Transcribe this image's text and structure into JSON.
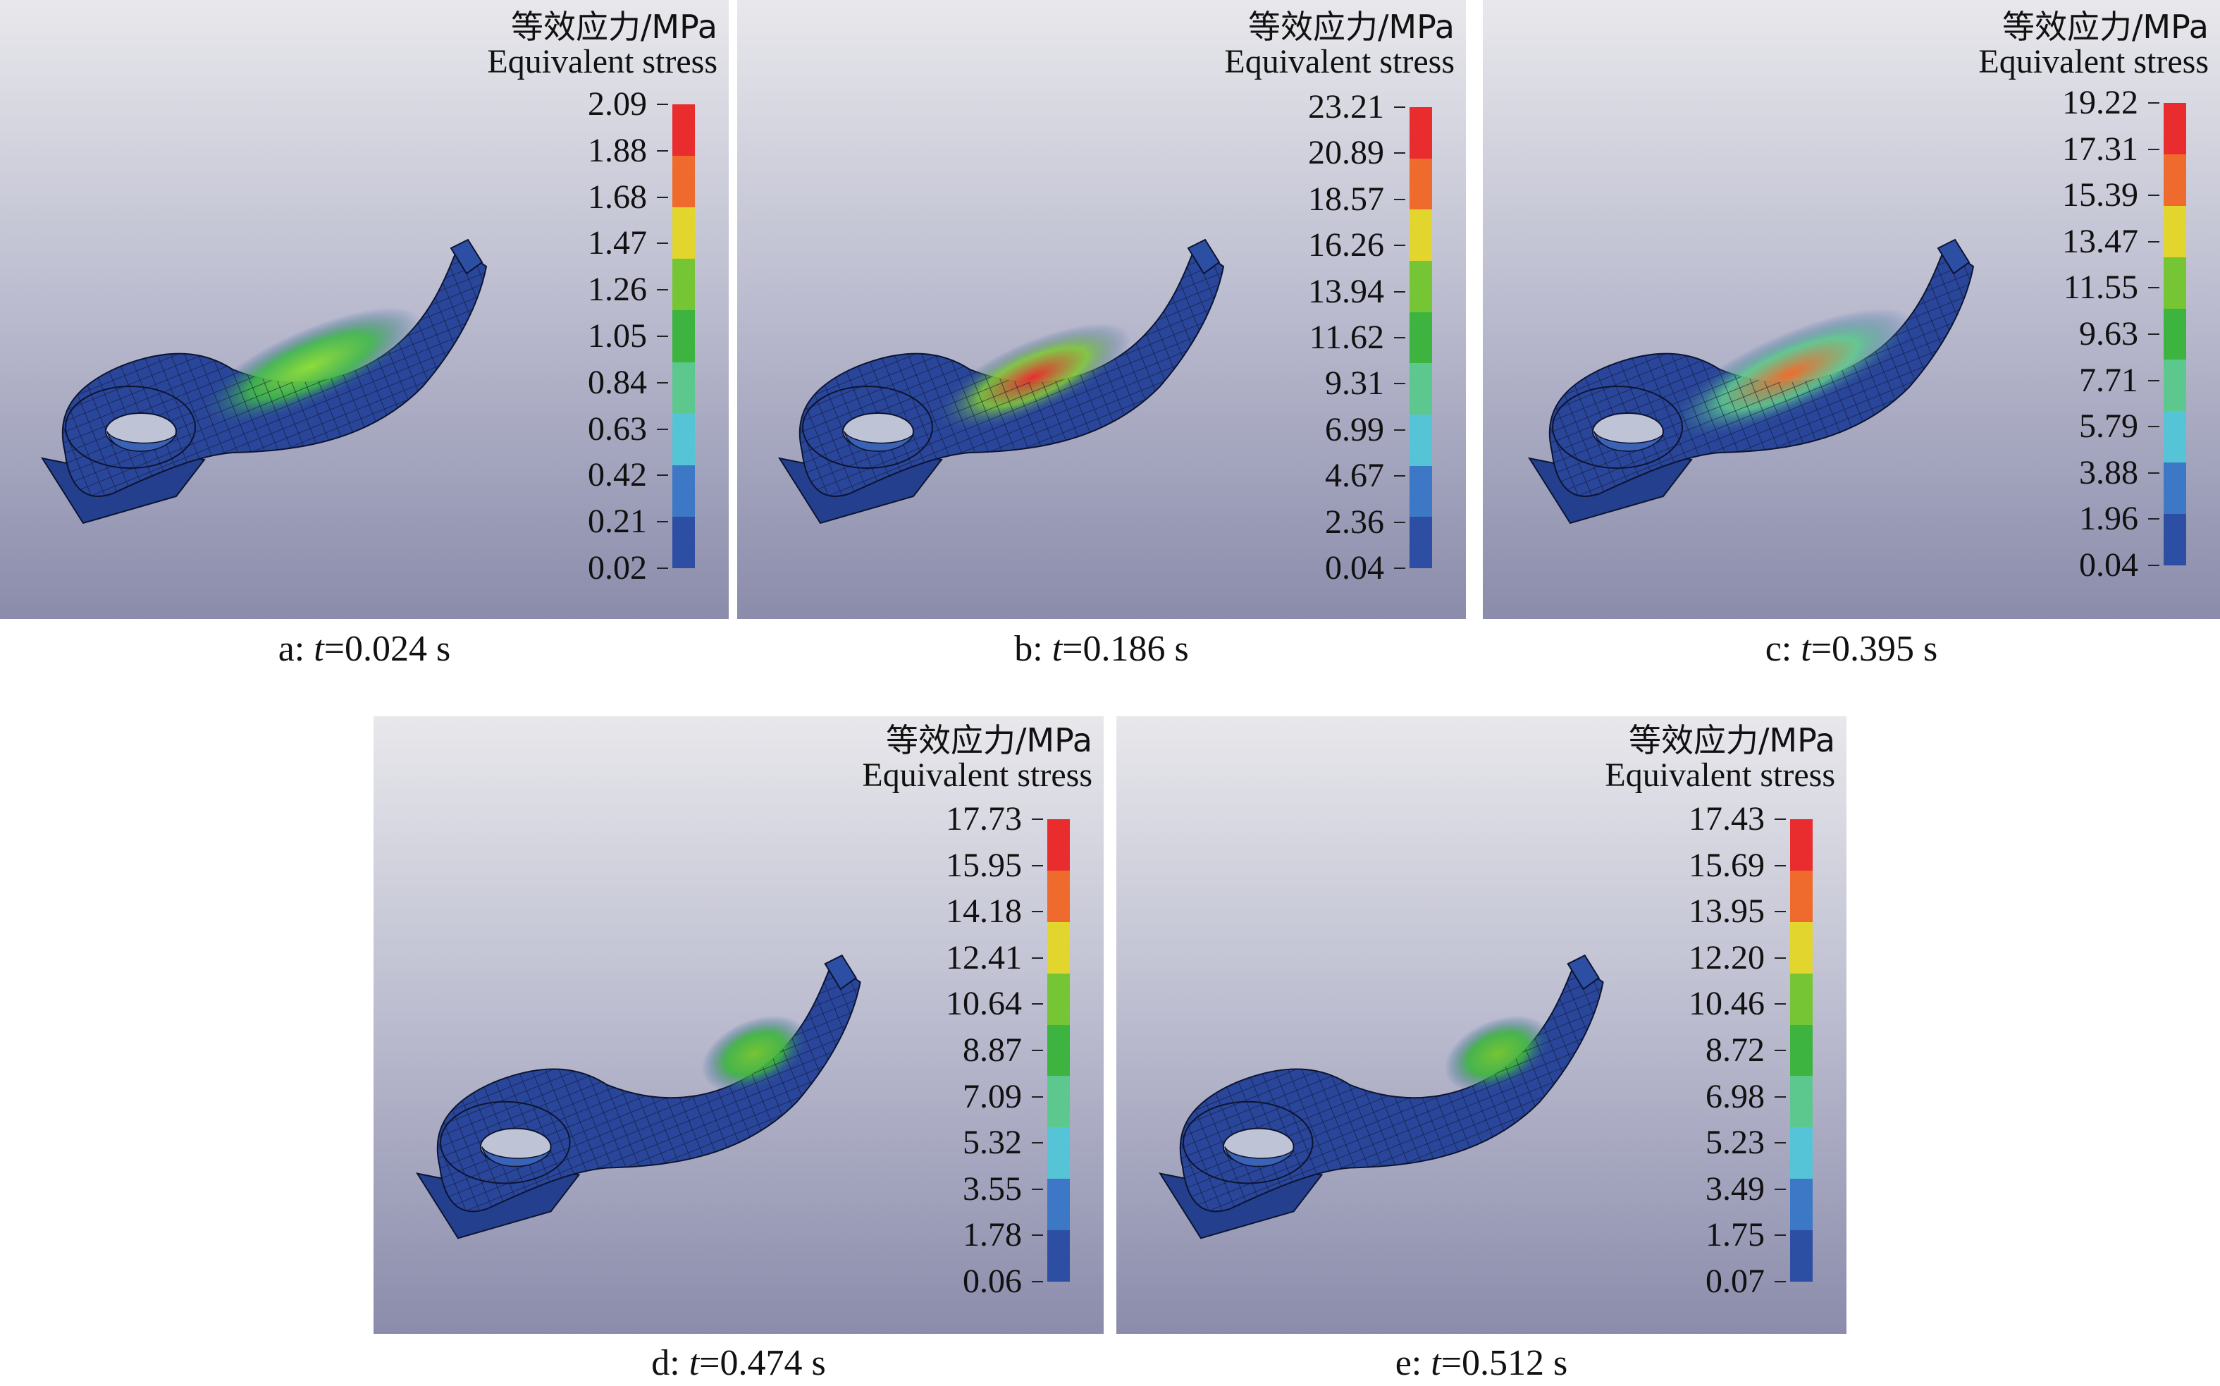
{
  "figure": {
    "legend": {
      "title_zh": "等效应力/MPa",
      "title_en": "Equivalent stress",
      "colors": [
        "#2d4fa3",
        "#3c78c5",
        "#56c4d7",
        "#5dc88d",
        "#3cb43f",
        "#76c534",
        "#e1d52e",
        "#ef6b2d",
        "#e92d2f"
      ],
      "icon": "stress-color-scale"
    },
    "panels": [
      {
        "id": "a",
        "caption_prefix": "a: ",
        "caption_var": "t",
        "caption_value": "=0.024 s",
        "ticks": [
          "2.09",
          "1.88",
          "1.68",
          "1.47",
          "1.26",
          "1.05",
          "0.84",
          "0.63",
          "0.42",
          "0.21",
          "0.02"
        ],
        "hotspot": "green-middle-band"
      },
      {
        "id": "b",
        "caption_prefix": "b: ",
        "caption_var": "t",
        "caption_value": "=0.186 s",
        "ticks": [
          "23.21",
          "20.89",
          "18.57",
          "16.26",
          "13.94",
          "11.62",
          "9.31",
          "6.99",
          "4.67",
          "2.36",
          "0.04"
        ],
        "hotspot": "red-central-band"
      },
      {
        "id": "c",
        "caption_prefix": "c: ",
        "caption_var": "t",
        "caption_value": "=0.395 s",
        "ticks": [
          "19.22",
          "17.31",
          "15.39",
          "13.47",
          "11.55",
          "9.63",
          "7.71",
          "5.79",
          "3.88",
          "1.96",
          "0.04"
        ],
        "hotspot": "orange-green-band"
      },
      {
        "id": "d",
        "caption_prefix": "d: ",
        "caption_var": "t",
        "caption_value": "=0.474 s",
        "ticks": [
          "17.73",
          "15.95",
          "14.18",
          "12.41",
          "10.64",
          "8.87",
          "7.09",
          "5.32",
          "3.55",
          "1.78",
          "0.06"
        ],
        "hotspot": "green-near-tip"
      },
      {
        "id": "e",
        "caption_prefix": "e: ",
        "caption_var": "t",
        "caption_value": "=0.512 s",
        "ticks": [
          "17.43",
          "15.69",
          "13.95",
          "12.20",
          "10.46",
          "8.72",
          "6.98",
          "5.23",
          "3.49",
          "1.75",
          "0.07"
        ],
        "hotspot": "green-near-tip"
      }
    ]
  }
}
